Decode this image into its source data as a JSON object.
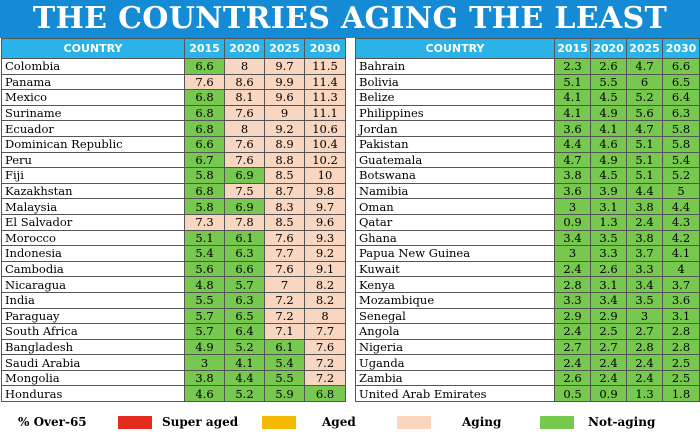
{
  "title": "THE COUNTRIES AGING THE LEAST",
  "headers": [
    "COUNTRY",
    "2015",
    "2020",
    "2025",
    "2030"
  ],
  "colors": {
    "super_aged": "#e52b1e",
    "aged": "#f5b800",
    "aging": "#f8d6c0",
    "not_aging": "#77c84f"
  },
  "left_rows": [
    {
      "country": "Colombia",
      "values": [
        "6.6",
        "8",
        "9.7",
        "11.5"
      ]
    },
    {
      "country": "Panama",
      "values": [
        "7.6",
        "8.6",
        "9.9",
        "11.4"
      ]
    },
    {
      "country": "Mexico",
      "values": [
        "6.8",
        "8.1",
        "9.6",
        "11.3"
      ]
    },
    {
      "country": "Suriname",
      "values": [
        "6.8",
        "7.6",
        "9",
        "11.1"
      ]
    },
    {
      "country": "Ecuador",
      "values": [
        "6.8",
        "8",
        "9.2",
        "10.6"
      ]
    },
    {
      "country": "Dominican Republic",
      "values": [
        "6.6",
        "7.6",
        "8.9",
        "10.4"
      ]
    },
    {
      "country": "Peru",
      "values": [
        "6.7",
        "7.6",
        "8.8",
        "10.2"
      ]
    },
    {
      "country": "Fiji",
      "values": [
        "5.8",
        "6.9",
        "8.5",
        "10"
      ]
    },
    {
      "country": "Kazakhstan",
      "values": [
        "6.8",
        "7.5",
        "8.7",
        "9.8"
      ]
    },
    {
      "country": "Malaysia",
      "values": [
        "5.8",
        "6.9",
        "8.3",
        "9.7"
      ]
    },
    {
      "country": "El Salvador",
      "values": [
        "7.3",
        "7.8",
        "8.5",
        "9.6"
      ]
    },
    {
      "country": "Morocco",
      "values": [
        "5.1",
        "6.1",
        "7.6",
        "9.3"
      ]
    },
    {
      "country": "Indonesia",
      "values": [
        "5.4",
        "6.3",
        "7.7",
        "9.2"
      ]
    },
    {
      "country": "Cambodia",
      "values": [
        "5.6",
        "6.6",
        "7.6",
        "9.1"
      ]
    },
    {
      "country": "Nicaragua",
      "values": [
        "4.8",
        "5.7",
        "7",
        "8.2"
      ]
    },
    {
      "country": "India",
      "values": [
        "5.5",
        "6.3",
        "7.2",
        "8.2"
      ]
    },
    {
      "country": "Paraguay",
      "values": [
        "5.7",
        "6.5",
        "7.2",
        "8"
      ]
    },
    {
      "country": "South Africa",
      "values": [
        "5.7",
        "6.4",
        "7.1",
        "7.7"
      ]
    },
    {
      "country": "Bangladesh",
      "values": [
        "4.9",
        "5.2",
        "6.1",
        "7.6"
      ]
    },
    {
      "country": "Saudi Arabia",
      "values": [
        "3",
        "4.1",
        "5.4",
        "7.2"
      ]
    },
    {
      "country": "Mongolia",
      "values": [
        "3.8",
        "4.4",
        "5.5",
        "7.2"
      ]
    },
    {
      "country": "Honduras",
      "values": [
        "4.6",
        "5.2",
        "5.9",
        "6.8"
      ]
    }
  ],
  "right_rows": [
    {
      "country": "Bahrain",
      "values": [
        "2.3",
        "2.6",
        "4.7",
        "6.6"
      ]
    },
    {
      "country": "Bolivia",
      "values": [
        "5.1",
        "5.5",
        "6",
        "6.5"
      ]
    },
    {
      "country": "Belize",
      "values": [
        "4.1",
        "4.5",
        "5.2",
        "6.4"
      ]
    },
    {
      "country": "Philippines",
      "values": [
        "4.1",
        "4.9",
        "5.6",
        "6.3"
      ]
    },
    {
      "country": "Jordan",
      "values": [
        "3.6",
        "4.1",
        "4.7",
        "5.8"
      ]
    },
    {
      "country": "Pakistan",
      "values": [
        "4.4",
        "4.6",
        "5.1",
        "5.8"
      ]
    },
    {
      "country": "Guatemala",
      "values": [
        "4.7",
        "4.9",
        "5.1",
        "5.4"
      ]
    },
    {
      "country": "Botswana",
      "values": [
        "3.8",
        "4.5",
        "5.1",
        "5.2"
      ]
    },
    {
      "country": "Namibia",
      "values": [
        "3.6",
        "3.9",
        "4.4",
        "5"
      ]
    },
    {
      "country": "Oman",
      "values": [
        "3",
        "3.1",
        "3.8",
        "4.4"
      ]
    },
    {
      "country": "Qatar",
      "values": [
        "0.9",
        "1.3",
        "2.4",
        "4.3"
      ]
    },
    {
      "country": "Ghana",
      "values": [
        "3.4",
        "3.5",
        "3.8",
        "4.2"
      ]
    },
    {
      "country": "Papua New Guinea",
      "values": [
        "3",
        "3.3",
        "3.7",
        "4.1"
      ]
    },
    {
      "country": "Kuwait",
      "values": [
        "2.4",
        "2.6",
        "3.3",
        "4"
      ]
    },
    {
      "country": "Kenya",
      "values": [
        "2.8",
        "3.1",
        "3.4",
        "3.7"
      ]
    },
    {
      "country": "Mozambique",
      "values": [
        "3.3",
        "3.4",
        "3.5",
        "3.6"
      ]
    },
    {
      "country": "Senegal",
      "values": [
        "2.9",
        "2.9",
        "3",
        "3.1"
      ]
    },
    {
      "country": "Angola",
      "values": [
        "2.4",
        "2.5",
        "2.7",
        "2.8"
      ]
    },
    {
      "country": "Nigeria",
      "values": [
        "2.7",
        "2.7",
        "2.8",
        "2.8"
      ]
    },
    {
      "country": "Uganda",
      "values": [
        "2.4",
        "2.4",
        "2.4",
        "2.5"
      ]
    },
    {
      "country": "Zambia",
      "values": [
        "2.6",
        "2.4",
        "2.4",
        "2.5"
      ]
    },
    {
      "country": "United Arab Emirates",
      "values": [
        "0.5",
        "0.9",
        "1.3",
        "1.8"
      ]
    }
  ],
  "legend": {
    "header": "% Over-65",
    "super_aged": "Super aged",
    "aged": "Aged",
    "aging": "Aging",
    "not_aging": "Not-aging"
  }
}
